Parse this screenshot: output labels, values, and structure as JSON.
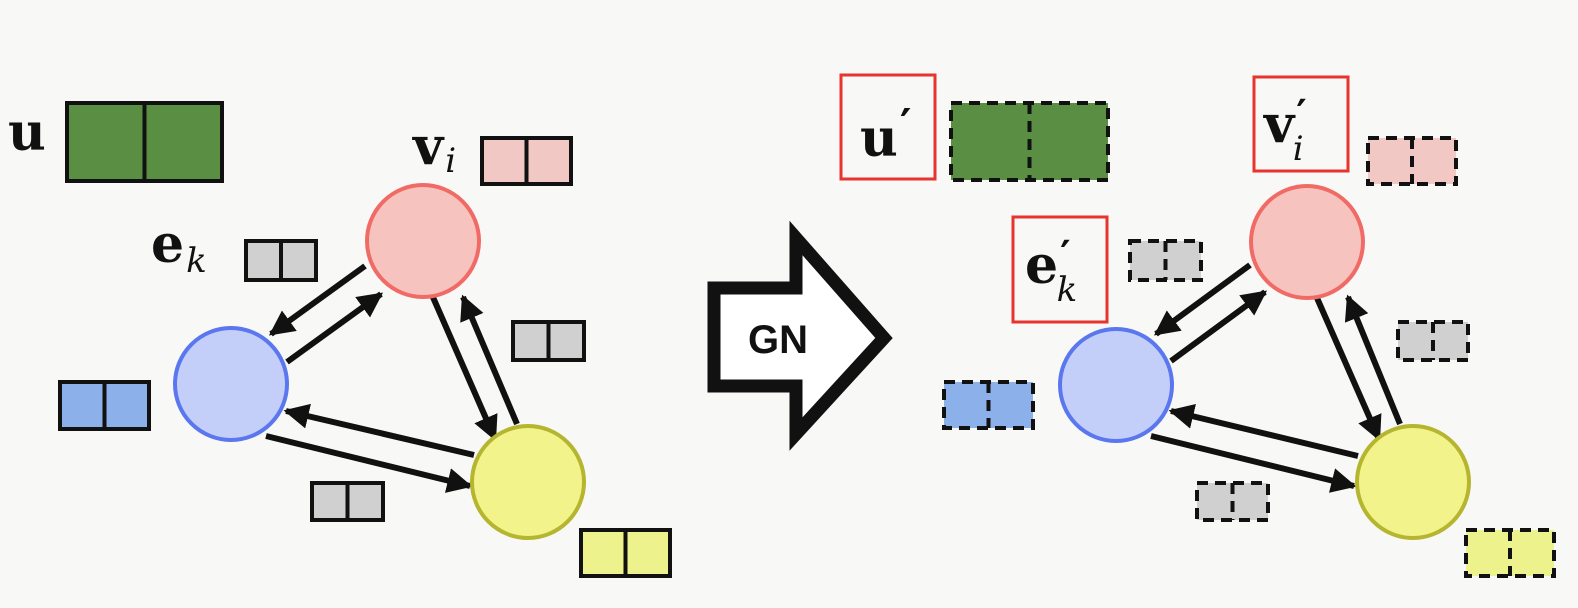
{
  "colors": {
    "global": "#5a8f43",
    "edge": "#d0d0d0",
    "node_red_fill": "#f7c3bf",
    "node_red_stroke": "#f06b66",
    "node_blue_fill": "#c3cff8",
    "node_blue_stroke": "#5b77ef",
    "node_yellow_fill": "#f2f38a",
    "node_yellow_stroke": "#b5b52f",
    "attr_red": "#f2c8c5",
    "attr_blue": "#8cb0ea",
    "attr_yellow": "#eef28c",
    "highlight": "#e8342e"
  },
  "input": {
    "global_label": "u",
    "node_label": "v",
    "node_sub": "i",
    "edge_label": "e",
    "edge_sub": "k"
  },
  "block": {
    "label": "GN"
  },
  "output": {
    "global_label": "u",
    "global_prime": "′",
    "node_label": "v",
    "node_prime": "′",
    "node_sub": "i",
    "edge_label": "e",
    "edge_prime": "′",
    "edge_sub": "k"
  }
}
